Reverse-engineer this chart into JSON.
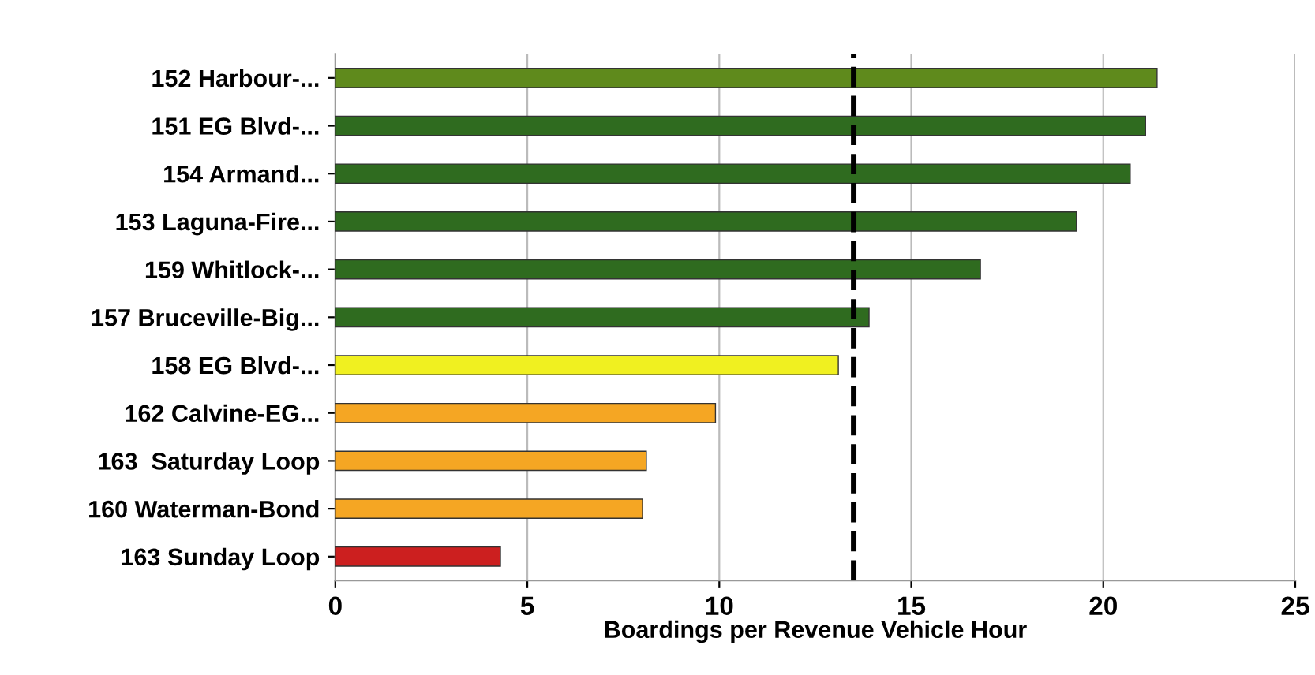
{
  "chart_data": {
    "type": "bar",
    "orientation": "horizontal",
    "categories": [
      "152 Harbour-...",
      "151 EG Blvd-...",
      "154 Armand...",
      "153 Laguna-Fire...",
      "159 Whitlock-...",
      "157 Bruceville-Big...",
      "158 EG Blvd-...",
      "162 Calvine-EG...",
      "163  Saturday Loop",
      "160 Waterman-Bond",
      "163 Sunday Loop"
    ],
    "values": [
      21.4,
      21.1,
      20.7,
      19.3,
      16.8,
      13.9,
      13.1,
      9.9,
      8.1,
      8.0,
      4.3
    ],
    "colors": [
      "#5f8a1c",
      "#2f6b1f",
      "#2f6b1f",
      "#2f6b1f",
      "#2f6b1f",
      "#2f6b1f",
      "#f0f020",
      "#f5a623",
      "#f5a623",
      "#f5a623",
      "#cc1f1f"
    ],
    "xlabel": "Boardings per Revenue Vehicle Hour",
    "xlim": [
      0,
      25
    ],
    "xticks": [
      0,
      5,
      10,
      15,
      20,
      25
    ],
    "grid": "x",
    "ref_lines": [
      {
        "axis": "x",
        "value": 13.5,
        "color": "#000000",
        "line_style": "dashed"
      }
    ]
  }
}
